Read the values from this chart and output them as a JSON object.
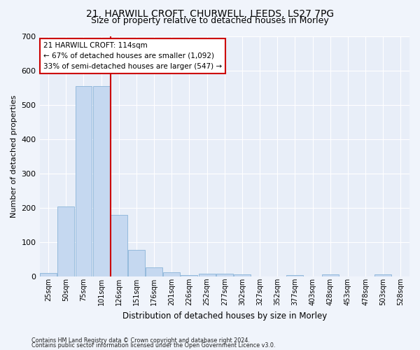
{
  "title1": "21, HARWILL CROFT, CHURWELL, LEEDS, LS27 7PG",
  "title2": "Size of property relative to detached houses in Morley",
  "xlabel": "Distribution of detached houses by size in Morley",
  "ylabel": "Number of detached properties",
  "bin_labels": [
    "25sqm",
    "50sqm",
    "75sqm",
    "101sqm",
    "126sqm",
    "151sqm",
    "176sqm",
    "201sqm",
    "226sqm",
    "252sqm",
    "277sqm",
    "302sqm",
    "327sqm",
    "352sqm",
    "377sqm",
    "403sqm",
    "428sqm",
    "453sqm",
    "478sqm",
    "503sqm",
    "528sqm"
  ],
  "bar_heights": [
    10,
    205,
    555,
    555,
    180,
    78,
    28,
    12,
    5,
    8,
    8,
    6,
    0,
    0,
    5,
    0,
    6,
    0,
    0,
    6,
    0
  ],
  "bar_color": "#c5d8f0",
  "bar_edge_color": "#8ab4d8",
  "vline_color": "#cc0000",
  "ylim": [
    0,
    700
  ],
  "annotation_line1": "21 HARWILL CROFT: 114sqm",
  "annotation_line2": "← 67% of detached houses are smaller (1,092)",
  "annotation_line3": "33% of semi-detached houses are larger (547) →",
  "annotation_box_color": "#ffffff",
  "annotation_box_edge": "#cc0000",
  "footer1": "Contains HM Land Registry data © Crown copyright and database right 2024.",
  "footer2": "Contains public sector information licensed under the Open Government Licence v3.0.",
  "bg_color": "#e8eef8",
  "fig_bg_color": "#f0f4fb",
  "title1_fontsize": 10,
  "title2_fontsize": 9
}
